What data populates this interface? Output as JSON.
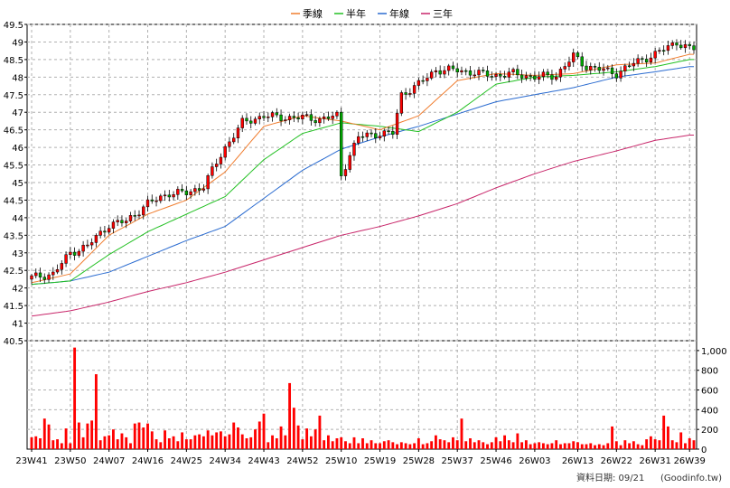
{
  "chart_data": {
    "type": "candlestick",
    "legend": [
      {
        "name": "季線",
        "color": "#f07d2f"
      },
      {
        "name": "半年",
        "color": "#22c022"
      },
      {
        "name": "年線",
        "color": "#2a6bd0"
      },
      {
        "name": "三年",
        "color": "#c8266a"
      }
    ],
    "price_ylim": [
      40.5,
      49.5
    ],
    "price_yticks": [
      40.5,
      41,
      41.5,
      42,
      42.5,
      43,
      43.5,
      44,
      44.5,
      45,
      45.5,
      46,
      46.5,
      47,
      47.5,
      48,
      48.5,
      49,
      49.5
    ],
    "volume_ylim": [
      0,
      1100
    ],
    "volume_yticks": [
      0,
      200,
      400,
      600,
      800,
      1000
    ],
    "volume_ytick_labels": [
      "0",
      "200",
      "400",
      "600",
      "800",
      "1,000"
    ],
    "x_labels": [
      "23W41",
      "23W50",
      "24W07",
      "24W16",
      "24W25",
      "24W34",
      "24W43",
      "24W52",
      "25W10",
      "25W19",
      "25W28",
      "25W37",
      "25W46",
      "26W03",
      "26W13",
      "26W22",
      "26W31",
      "26W39"
    ],
    "x_label_index": [
      0,
      9,
      18,
      27,
      36,
      45,
      54,
      63,
      72,
      81,
      90,
      99,
      108,
      117,
      127,
      136,
      145,
      153
    ],
    "num_periods": 155,
    "up_color": "#ff0000",
    "down_color": "#00aa00",
    "volume_color": "#ff0000",
    "close_keypoints": [
      [
        0,
        42.3
      ],
      [
        5,
        42.4
      ],
      [
        9,
        43.0
      ],
      [
        13,
        43.2
      ],
      [
        18,
        43.8
      ],
      [
        22,
        43.9
      ],
      [
        27,
        44.4
      ],
      [
        32,
        44.7
      ],
      [
        36,
        44.7
      ],
      [
        40,
        44.9
      ],
      [
        45,
        46.0
      ],
      [
        49,
        46.7
      ],
      [
        54,
        46.9
      ],
      [
        58,
        46.85
      ],
      [
        63,
        46.85
      ],
      [
        67,
        46.8
      ],
      [
        71,
        46.9
      ],
      [
        72,
        45.2
      ],
      [
        74,
        45.8
      ],
      [
        76,
        46.3
      ],
      [
        81,
        46.4
      ],
      [
        84,
        46.4
      ],
      [
        86,
        47.5
      ],
      [
        90,
        47.8
      ],
      [
        94,
        48.2
      ],
      [
        99,
        48.2
      ],
      [
        104,
        48.1
      ],
      [
        108,
        48.05
      ],
      [
        112,
        48.1
      ],
      [
        117,
        48.0
      ],
      [
        122,
        48.05
      ],
      [
        126,
        48.6
      ],
      [
        129,
        48.3
      ],
      [
        133,
        48.2
      ],
      [
        136,
        48.1
      ],
      [
        140,
        48.4
      ],
      [
        145,
        48.65
      ],
      [
        150,
        49.0
      ],
      [
        153,
        48.8
      ]
    ],
    "ma_quarter_kp": [
      [
        0,
        42.15
      ],
      [
        9,
        42.4
      ],
      [
        18,
        43.5
      ],
      [
        27,
        44.1
      ],
      [
        36,
        44.5
      ],
      [
        45,
        45.3
      ],
      [
        54,
        46.6
      ],
      [
        63,
        46.9
      ],
      [
        72,
        46.75
      ],
      [
        81,
        46.5
      ],
      [
        90,
        46.9
      ],
      [
        99,
        47.9
      ],
      [
        108,
        48.1
      ],
      [
        117,
        48.05
      ],
      [
        126,
        48.1
      ],
      [
        136,
        48.35
      ],
      [
        145,
        48.4
      ],
      [
        153,
        48.65
      ]
    ],
    "ma_half_kp": [
      [
        0,
        42.1
      ],
      [
        9,
        42.2
      ],
      [
        18,
        42.95
      ],
      [
        27,
        43.6
      ],
      [
        36,
        44.1
      ],
      [
        45,
        44.6
      ],
      [
        54,
        45.65
      ],
      [
        63,
        46.4
      ],
      [
        72,
        46.7
      ],
      [
        81,
        46.6
      ],
      [
        90,
        46.45
      ],
      [
        99,
        47.0
      ],
      [
        108,
        47.8
      ],
      [
        117,
        48.0
      ],
      [
        126,
        48.05
      ],
      [
        136,
        48.15
      ],
      [
        145,
        48.3
      ],
      [
        153,
        48.5
      ]
    ],
    "ma_year_kp": [
      [
        0,
        42.1
      ],
      [
        9,
        42.2
      ],
      [
        18,
        42.45
      ],
      [
        27,
        42.9
      ],
      [
        36,
        43.35
      ],
      [
        45,
        43.75
      ],
      [
        54,
        44.55
      ],
      [
        63,
        45.35
      ],
      [
        72,
        45.95
      ],
      [
        81,
        46.3
      ],
      [
        90,
        46.6
      ],
      [
        99,
        46.95
      ],
      [
        108,
        47.3
      ],
      [
        117,
        47.5
      ],
      [
        126,
        47.7
      ],
      [
        136,
        48.0
      ],
      [
        145,
        48.15
      ],
      [
        153,
        48.3
      ]
    ],
    "ma_3year_kp": [
      [
        0,
        41.2
      ],
      [
        9,
        41.35
      ],
      [
        18,
        41.6
      ],
      [
        27,
        41.9
      ],
      [
        36,
        42.15
      ],
      [
        45,
        42.45
      ],
      [
        54,
        42.8
      ],
      [
        63,
        43.15
      ],
      [
        72,
        43.5
      ],
      [
        81,
        43.75
      ],
      [
        90,
        44.05
      ],
      [
        99,
        44.4
      ],
      [
        108,
        44.85
      ],
      [
        117,
        45.25
      ],
      [
        126,
        45.6
      ],
      [
        136,
        45.9
      ],
      [
        145,
        46.2
      ],
      [
        153,
        46.35
      ]
    ],
    "volume": [
      120,
      130,
      110,
      310,
      250,
      90,
      100,
      60,
      210,
      60,
      1030,
      270,
      120,
      260,
      290,
      760,
      90,
      130,
      140,
      200,
      100,
      160,
      120,
      60,
      260,
      270,
      220,
      260,
      180,
      100,
      70,
      190,
      110,
      130,
      80,
      170,
      100,
      100,
      140,
      150,
      130,
      190,
      140,
      170,
      180,
      130,
      150,
      270,
      220,
      150,
      110,
      120,
      200,
      280,
      360,
      70,
      140,
      110,
      230,
      140,
      670,
      420,
      240,
      100,
      210,
      130,
      200,
      340,
      90,
      140,
      80,
      110,
      120,
      80,
      60,
      120,
      60,
      110,
      60,
      90,
      60,
      60,
      80,
      90,
      70,
      50,
      70,
      60,
      50,
      60,
      110,
      50,
      60,
      80,
      140,
      100,
      90,
      70,
      120,
      90,
      310,
      80,
      110,
      70,
      90,
      70,
      50,
      70,
      120,
      80,
      140,
      90,
      70,
      160,
      70,
      90,
      50,
      60,
      70,
      60,
      50,
      60,
      90,
      50,
      60,
      60,
      80,
      70,
      50,
      50,
      60,
      40,
      50,
      40,
      60,
      230,
      80,
      40,
      90,
      60,
      80,
      50,
      40,
      100,
      130,
      100,
      90,
      340,
      230,
      90,
      70,
      170,
      60,
      110,
      90,
      80,
      90,
      310,
      100
    ]
  },
  "footer": {
    "date_text": "資料日期: 09/21",
    "source_text": "(Goodinfo.tw)"
  }
}
